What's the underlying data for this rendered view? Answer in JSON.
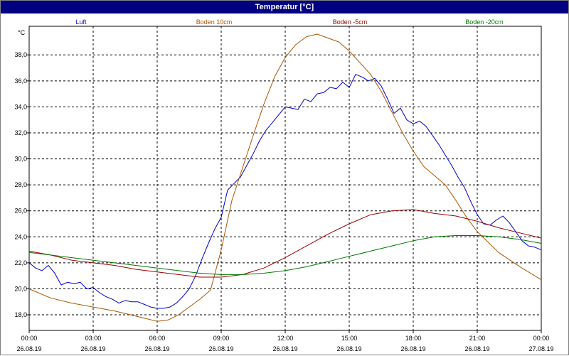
{
  "window": {
    "title": "Temperatur [°C]"
  },
  "chart_data": {
    "type": "line",
    "title": "Temperatur [°C]",
    "ylabel": "°C",
    "xlabel": "",
    "ylim": [
      16.8,
      40.2
    ],
    "xlim": [
      0,
      24
    ],
    "grid": true,
    "legend_position": "top",
    "y_ticks": [
      "18,0",
      "20,0",
      "22,0",
      "24,0",
      "26,0",
      "28,0",
      "30,0",
      "32,0",
      "34,0",
      "36,0",
      "38,0"
    ],
    "y_tick_values": [
      18,
      20,
      22,
      24,
      26,
      28,
      30,
      32,
      34,
      36,
      38
    ],
    "x_tick_values": [
      0,
      3,
      6,
      9,
      12,
      15,
      18,
      21,
      24
    ],
    "x_ticks": [
      {
        "time": "00:00",
        "date": "26.08.19"
      },
      {
        "time": "03:00",
        "date": "26.08.19"
      },
      {
        "time": "06:00",
        "date": "26.08.19"
      },
      {
        "time": "09:00",
        "date": "26.08.19"
      },
      {
        "time": "12:00",
        "date": "26.08.19"
      },
      {
        "time": "15:00",
        "date": "26.08.19"
      },
      {
        "time": "18:00",
        "date": "26.08.19"
      },
      {
        "time": "21:00",
        "date": "26.08.19"
      },
      {
        "time": "00:00",
        "date": "27.08.19"
      }
    ],
    "series": [
      {
        "name": "Luft",
        "color": "#0000cc",
        "x": [
          0,
          0.3,
          0.6,
          0.9,
          1.2,
          1.5,
          1.8,
          2.1,
          2.4,
          2.7,
          3.0,
          3.3,
          3.6,
          3.9,
          4.2,
          4.5,
          4.8,
          5.1,
          5.4,
          5.7,
          6.0,
          6.3,
          6.6,
          6.9,
          7.2,
          7.5,
          7.8,
          8.1,
          8.4,
          8.7,
          9.0,
          9.3,
          9.6,
          9.9,
          10.2,
          10.5,
          10.8,
          11.1,
          11.4,
          11.7,
          12.0,
          12.3,
          12.6,
          12.9,
          13.2,
          13.5,
          13.8,
          14.1,
          14.4,
          14.7,
          15.0,
          15.3,
          15.6,
          15.9,
          16.2,
          16.5,
          16.8,
          17.1,
          17.4,
          17.7,
          18.0,
          18.3,
          18.6,
          18.9,
          19.2,
          19.5,
          19.8,
          20.1,
          20.4,
          20.7,
          21.0,
          21.3,
          21.6,
          21.9,
          22.2,
          22.5,
          22.8,
          23.1,
          23.4,
          23.7,
          24.0
        ],
        "y": [
          22.0,
          21.6,
          21.4,
          21.8,
          21.2,
          20.3,
          20.5,
          20.4,
          20.5,
          20.0,
          20.1,
          19.7,
          19.4,
          19.2,
          18.9,
          19.1,
          19.0,
          19.0,
          18.8,
          18.6,
          18.5,
          18.5,
          18.6,
          18.9,
          19.4,
          20.0,
          21.0,
          22.3,
          23.5,
          24.6,
          25.5,
          27.6,
          28.1,
          28.6,
          29.5,
          30.4,
          31.4,
          32.2,
          32.8,
          33.4,
          34.0,
          33.9,
          33.8,
          34.6,
          34.4,
          35.0,
          35.1,
          35.5,
          35.4,
          35.9,
          35.5,
          36.5,
          36.3,
          36.0,
          36.2,
          35.6,
          34.6,
          33.5,
          33.9,
          33.0,
          32.7,
          32.9,
          32.5,
          31.8,
          31.1,
          30.3,
          29.5,
          28.6,
          27.8,
          26.7,
          25.7,
          25.0,
          24.9,
          25.3,
          25.6,
          25.1,
          24.4,
          23.7,
          23.3,
          23.2,
          23.0
        ]
      },
      {
        "name": "Boden 10cm",
        "color": "#aa5500",
        "x": [
          0,
          1,
          2,
          3,
          4,
          5,
          5.5,
          6,
          6.5,
          7,
          7.5,
          8,
          8.5,
          9,
          9.5,
          10,
          10.5,
          11,
          11.5,
          12,
          12.5,
          13,
          13.5,
          14,
          14.5,
          15,
          15.5,
          16,
          16.5,
          17,
          17.5,
          18,
          18.5,
          19,
          19.5,
          20,
          20.5,
          21,
          22,
          23,
          24
        ],
        "y": [
          20.0,
          19.3,
          18.9,
          18.6,
          18.3,
          17.9,
          17.7,
          17.5,
          17.6,
          18.0,
          18.6,
          19.2,
          19.9,
          23.0,
          26.8,
          29.3,
          31.8,
          34.2,
          36.3,
          37.8,
          38.8,
          39.4,
          39.6,
          39.3,
          39.0,
          38.3,
          37.4,
          36.5,
          35.2,
          33.6,
          32.0,
          30.6,
          29.4,
          28.7,
          28.0,
          26.8,
          25.5,
          24.4,
          22.8,
          21.7,
          20.7
        ]
      },
      {
        "name": "Boden -5cm",
        "color": "#990000",
        "x": [
          0,
          1,
          2,
          3,
          4,
          5,
          6,
          7,
          8,
          9,
          10,
          11,
          12,
          13,
          14,
          15,
          16,
          17,
          18,
          19,
          20,
          21,
          22,
          23,
          24
        ],
        "y": [
          22.9,
          22.6,
          22.2,
          22.0,
          21.8,
          21.5,
          21.3,
          21.1,
          20.9,
          20.9,
          21.1,
          21.6,
          22.4,
          23.3,
          24.2,
          25.0,
          25.7,
          26.0,
          26.1,
          25.8,
          25.6,
          25.2,
          24.7,
          24.3,
          23.9
        ]
      },
      {
        "name": "Boden -20cm",
        "color": "#007700",
        "x": [
          0,
          1,
          2,
          3,
          4,
          5,
          6,
          7,
          8,
          9,
          10,
          11,
          12,
          13,
          14,
          15,
          16,
          17,
          18,
          19,
          20,
          21,
          22,
          23,
          24
        ],
        "y": [
          22.8,
          22.6,
          22.4,
          22.2,
          22.0,
          21.8,
          21.6,
          21.4,
          21.2,
          21.1,
          21.1,
          21.2,
          21.4,
          21.7,
          22.1,
          22.5,
          22.9,
          23.3,
          23.7,
          24.0,
          24.1,
          24.1,
          24.0,
          23.8,
          23.5
        ]
      }
    ]
  }
}
